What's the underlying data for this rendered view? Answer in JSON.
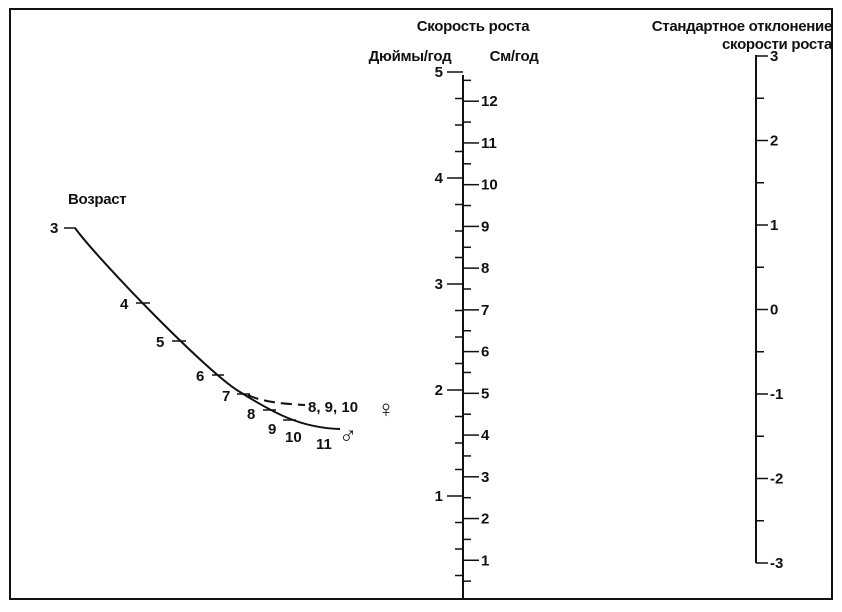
{
  "chart_data": {
    "type": "nomogram",
    "colors": {
      "ink": "#111111",
      "background": "#ffffff"
    },
    "velocity_title": "Скорость роста",
    "inches_label": "Дюймы/год",
    "cm_label": "См/год",
    "sd_title_line1": "Стандартное отклонение",
    "sd_title_line2": "скорости роста",
    "age_label": "Возраст",
    "inches_axis": {
      "range": [
        0,
        5
      ],
      "labels": [
        "1",
        "2",
        "3",
        "4",
        "5"
      ],
      "minor_step": 0.25
    },
    "cm_axis": {
      "range": [
        0,
        12.5
      ],
      "labels": [
        "1",
        "2",
        "3",
        "4",
        "5",
        "6",
        "7",
        "8",
        "9",
        "10",
        "11",
        "12"
      ],
      "minor_step": 0.5
    },
    "sd_axis": {
      "range": [
        -3,
        3
      ],
      "labels": [
        "-3",
        "-2",
        "-1",
        "0",
        "1",
        "2",
        "3"
      ],
      "minor_step": 0.5
    },
    "age_labels": {
      "3": "3",
      "4": "4",
      "5": "5",
      "6": "6",
      "7": "7",
      "8": "8",
      "9": "9",
      "10": "10",
      "11": "11",
      "female_tail": "8, 9, 10"
    },
    "male_symbol": "♂",
    "female_symbol": "♀",
    "male_curve": [
      {
        "age": 3,
        "label": "3"
      },
      {
        "age": 4,
        "label": "4"
      },
      {
        "age": 5,
        "label": "5"
      },
      {
        "age": 6,
        "label": "6"
      },
      {
        "age": 7,
        "label": "7"
      },
      {
        "age": 8,
        "label": "8"
      },
      {
        "age": 9,
        "label": "9"
      },
      {
        "age": 10,
        "label": "10"
      },
      {
        "age": 11,
        "label": "11"
      }
    ],
    "female_curve": [
      {
        "age": 7,
        "label": "7"
      },
      {
        "ages": [
          8,
          9,
          10
        ],
        "label": "8, 9, 10"
      }
    ]
  }
}
